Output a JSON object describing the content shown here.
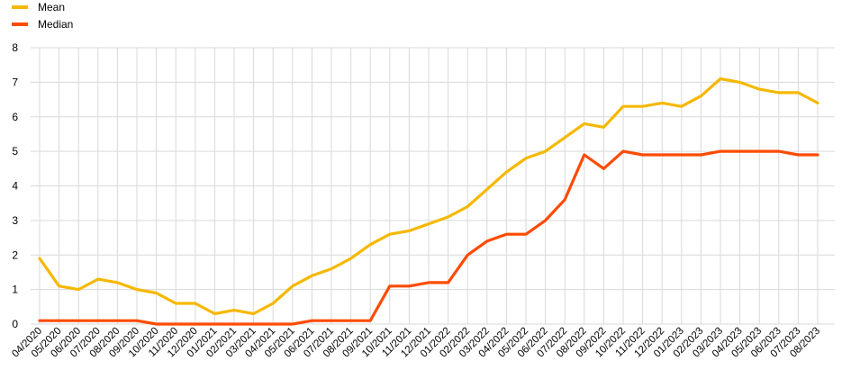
{
  "chart_data": {
    "type": "line",
    "title": "",
    "xlabel": "",
    "ylabel": "",
    "ylim": [
      0,
      8
    ],
    "yticks": [
      0,
      1,
      2,
      3,
      4,
      5,
      6,
      7,
      8
    ],
    "grid": true,
    "legend": "top-left",
    "categories": [
      "04/2020",
      "05/2020",
      "06/2020",
      "07/2020",
      "08/2020",
      "09/2020",
      "10/2020",
      "11/2020",
      "12/2020",
      "01/2021",
      "02/2021",
      "03/2021",
      "04/2021",
      "05/2021",
      "06/2021",
      "07/2021",
      "08/2021",
      "09/2021",
      "10/2021",
      "11/2021",
      "12/2021",
      "01/2022",
      "02/2022",
      "03/2022",
      "04/2022",
      "05/2022",
      "06/2022",
      "07/2022",
      "08/2022",
      "09/2022",
      "10/2022",
      "11/2022",
      "12/2022",
      "01/2023",
      "02/2023",
      "03/2023",
      "04/2023",
      "05/2023",
      "06/2023",
      "07/2023",
      "08/2023"
    ],
    "series": [
      {
        "name": "Mean",
        "color": "#f5b800",
        "values": [
          1.9,
          1.1,
          1.0,
          1.3,
          1.2,
          1.0,
          0.9,
          0.6,
          0.6,
          0.3,
          0.4,
          0.3,
          0.6,
          1.1,
          1.4,
          1.6,
          1.9,
          2.3,
          2.6,
          2.7,
          2.9,
          3.1,
          3.4,
          3.9,
          4.4,
          4.8,
          5.0,
          5.4,
          5.8,
          5.7,
          6.3,
          6.3,
          6.4,
          6.3,
          6.6,
          7.1,
          7.0,
          6.8,
          6.7,
          6.7,
          6.4
        ]
      },
      {
        "name": "Median",
        "color": "#ff4b00",
        "values": [
          0.1,
          0.1,
          0.1,
          0.1,
          0.1,
          0.1,
          0.0,
          0.0,
          0.0,
          0.0,
          0.0,
          0.0,
          0.0,
          0.0,
          0.1,
          0.1,
          0.1,
          0.1,
          1.1,
          1.1,
          1.2,
          1.2,
          2.0,
          2.4,
          2.6,
          2.6,
          3.0,
          3.6,
          4.9,
          4.5,
          5.0,
          4.9,
          4.9,
          4.9,
          4.9,
          5.0,
          5.0,
          5.0,
          5.0,
          4.9,
          4.9
        ]
      }
    ]
  }
}
